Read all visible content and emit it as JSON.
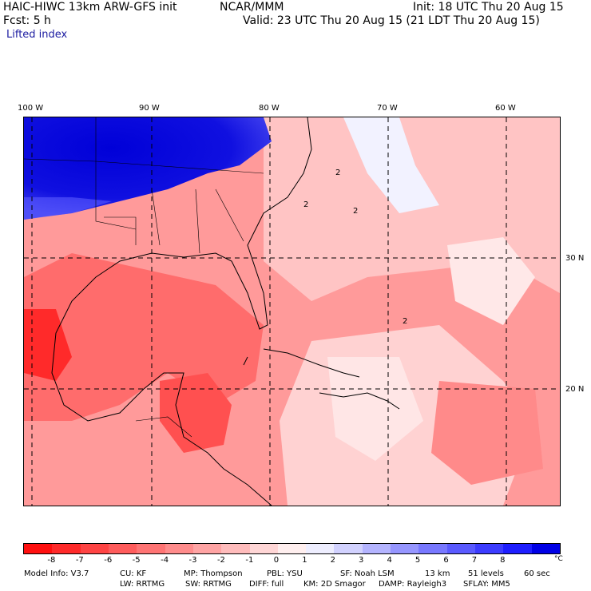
{
  "header": {
    "model_title": "HAIC-HIWC 13km ARW-GFS init",
    "org": "NCAR/MMM",
    "init": "Init: 18 UTC Thu 20 Aug 15",
    "forecast": "Fcst:    5 h",
    "valid": "Valid: 23 UTC Thu 20 Aug 15 (21 LDT Thu 20 Aug 15)",
    "field": "Lifted index"
  },
  "map": {
    "lon_labels": [
      "100 W",
      "90 W",
      "80 W",
      "70 W",
      "60 W"
    ],
    "lat_labels": [
      "30 N",
      "20 N"
    ],
    "contour_labels": [
      "2",
      "2",
      "2",
      "2"
    ],
    "dominant_colors": {
      "stable_blue": "#0000dd",
      "unstable_red": "#ff3a3a",
      "neutral": "#ffdede"
    }
  },
  "colorbar": {
    "colors": [
      "#ff1010",
      "#ff2a2a",
      "#ff4444",
      "#ff5c5c",
      "#ff7474",
      "#ff8c8c",
      "#ffa4a4",
      "#ffbcbc",
      "#ffd6d6",
      "#ffefef",
      "#eeeeff",
      "#d2d2ff",
      "#b4b4ff",
      "#9696ff",
      "#7878ff",
      "#5a5aff",
      "#3c3cff",
      "#1e1eff",
      "#0000e6"
    ],
    "tick_labels": [
      "-8",
      "-7",
      "-6",
      "-5",
      "-4",
      "-3",
      "-2",
      "-1",
      "0",
      "1",
      "2",
      "3",
      "4",
      "5",
      "6",
      "7",
      "8"
    ],
    "unit": "°C"
  },
  "info": {
    "line1": [
      "Model Info: V3.7",
      "CU: KF",
      "MP: Thompson",
      "PBL: YSU",
      "SF: Noah LSM",
      "13 km",
      "51 levels",
      "60 sec"
    ],
    "line2": [
      "LW: RRTMG",
      "SW: RRTMG",
      "DIFF: full",
      "KM: 2D Smagor",
      "DAMP: Rayleigh3",
      "SFLAY: MM5"
    ]
  }
}
